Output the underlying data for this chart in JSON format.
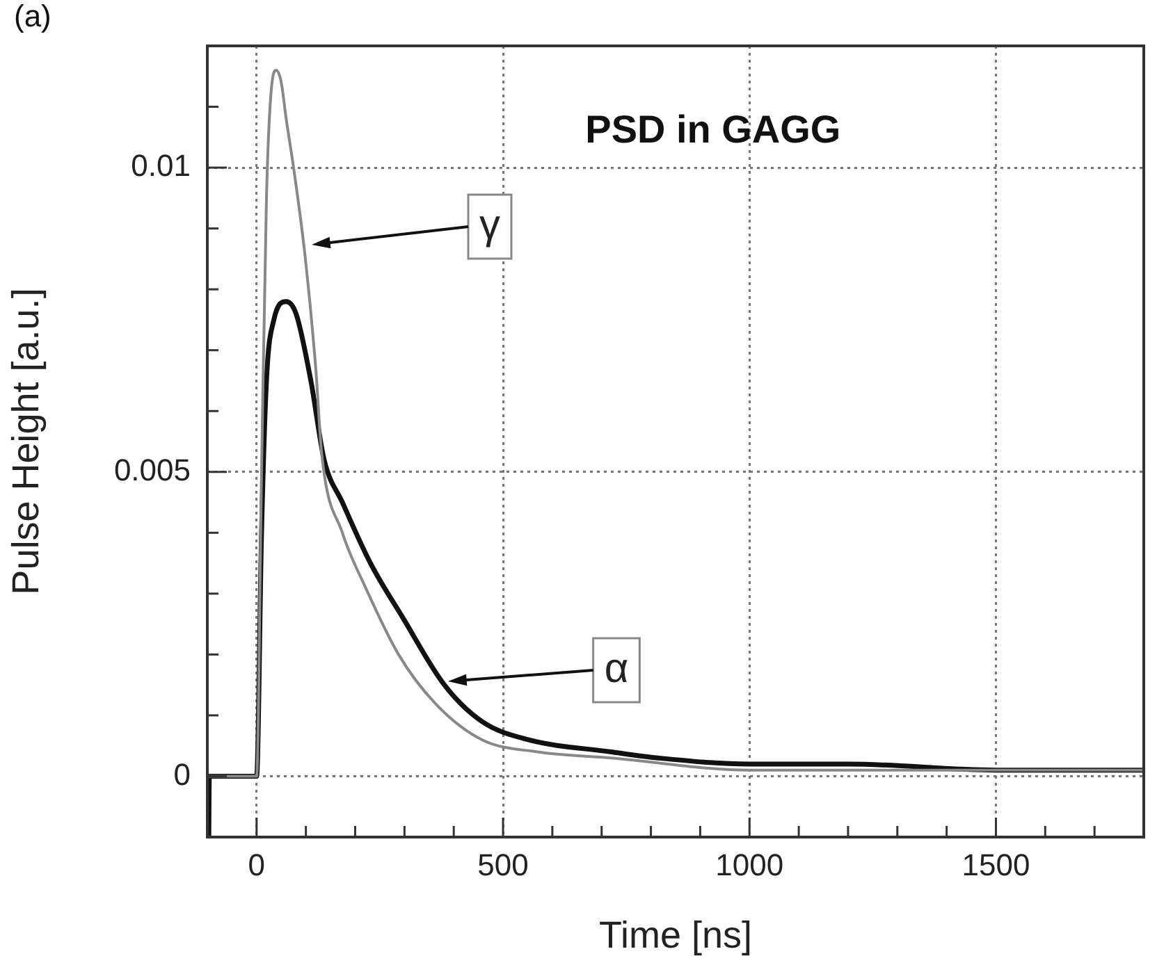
{
  "chart_data": {
    "type": "line",
    "title": "PSD in GAGG",
    "xlabel": "Time [ns]",
    "ylabel": "Pulse Height [a.u.]",
    "annotations": [
      "(a)",
      "γ",
      "α"
    ],
    "xlim": [
      -100,
      1800
    ],
    "xticks": [
      0,
      {
        "value": 100,
        "label": null
      },
      {
        "value": 200,
        "label": null
      },
      {
        "value": 300,
        "label": null
      },
      {
        "value": 400,
        "label": null
      },
      500,
      {
        "value": 600,
        "label": null
      },
      {
        "value": 700,
        "label": null
      },
      {
        "value": 800,
        "label": null
      },
      {
        "value": 900,
        "label": null
      },
      1000,
      {
        "value": 1100,
        "label": null
      },
      {
        "value": 1200,
        "label": null
      },
      {
        "value": 1300,
        "label": null
      },
      {
        "value": 1400,
        "label": null
      },
      1500,
      {
        "value": 1600,
        "label": null
      },
      {
        "value": 1700,
        "label": null
      }
    ],
    "ylim": [
      -0.001,
      0.012
    ],
    "yticks": [
      0,
      {
        "value": 0.001,
        "label": null
      },
      {
        "value": 0.002,
        "label": null
      },
      {
        "value": 0.003,
        "label": null
      },
      {
        "value": 0.004,
        "label": null
      },
      0.005,
      {
        "value": 0.006,
        "label": null
      },
      {
        "value": 0.007,
        "label": null
      },
      {
        "value": 0.008,
        "label": null
      },
      {
        "value": 0.009,
        "label": null
      },
      0.01,
      {
        "value": 0.011,
        "label": null
      }
    ],
    "grid": true,
    "legend": false,
    "marker": "none",
    "line_style": "solid",
    "series": [
      {
        "color": "#888888",
        "x": [
          -100,
          0,
          10,
          20,
          30,
          40,
          50,
          60,
          75,
          99,
          120,
          132,
          174,
          221,
          288,
          362,
          457,
          570,
          720,
          1000,
          1200,
          1500,
          1800
        ],
        "values": [
          0,
          0,
          0.005,
          0.0095,
          0.0113,
          0.0116,
          0.0114,
          0.0108,
          0.01,
          0.0085,
          0.0067,
          0.0053,
          0.004,
          0.0031,
          0.002,
          0.0012,
          0.0006,
          0.0004,
          0.0003,
          0.0001,
          0.0001,
          0.0001,
          0.0001
        ]
      },
      {
        "color": "#111111",
        "x": [
          -97,
          -96,
          0,
          10,
          20,
          35,
          60,
          80,
          110,
          137,
          174,
          231,
          297,
          381,
          457,
          551,
          720,
          814,
          1000,
          1200,
          1500,
          1800
        ],
        "values": [
          -0.001,
          0,
          0,
          0.004,
          0.0065,
          0.0075,
          0.0078,
          0.0076,
          0.0065,
          0.0052,
          0.0045,
          0.0035,
          0.0026,
          0.0015,
          0.0009,
          0.0006,
          0.0004,
          0.0003,
          0.0002,
          0.0002,
          0.0001,
          0.0001
        ]
      }
    ]
  }
}
